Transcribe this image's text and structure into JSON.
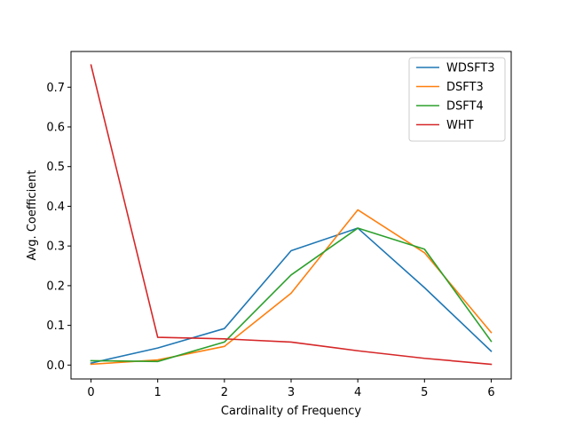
{
  "chart_data": {
    "type": "line",
    "title": "",
    "xlabel": "Cardinality of Frequency",
    "ylabel": "Avg. Coefficient",
    "x": [
      0,
      1,
      2,
      3,
      4,
      5,
      6
    ],
    "xlim": [
      -0.3,
      6.3
    ],
    "ylim": [
      -0.035,
      0.79
    ],
    "xticks": [
      0,
      1,
      2,
      3,
      4,
      5,
      6
    ],
    "yticks": [
      0.0,
      0.1,
      0.2,
      0.3,
      0.4,
      0.5,
      0.6,
      0.7
    ],
    "ytick_labels": [
      "0.0",
      "0.1",
      "0.2",
      "0.3",
      "0.4",
      "0.5",
      "0.6",
      "0.7"
    ],
    "grid": false,
    "legend_position": "top-right",
    "series": [
      {
        "name": "WDSFT3",
        "color": "#1f77b4",
        "values": [
          0.005,
          0.043,
          0.092,
          0.288,
          0.345,
          0.195,
          0.035
        ]
      },
      {
        "name": "DSFT3",
        "color": "#ff7f0e",
        "values": [
          0.002,
          0.013,
          0.047,
          0.181,
          0.391,
          0.283,
          0.082
        ]
      },
      {
        "name": "DSFT4",
        "color": "#2ca02c",
        "values": [
          0.011,
          0.009,
          0.058,
          0.227,
          0.345,
          0.292,
          0.06
        ]
      },
      {
        "name": "WHT",
        "color": "#d62728",
        "values": [
          0.756,
          0.07,
          0.066,
          0.058,
          0.036,
          0.017,
          0.002
        ]
      }
    ]
  }
}
